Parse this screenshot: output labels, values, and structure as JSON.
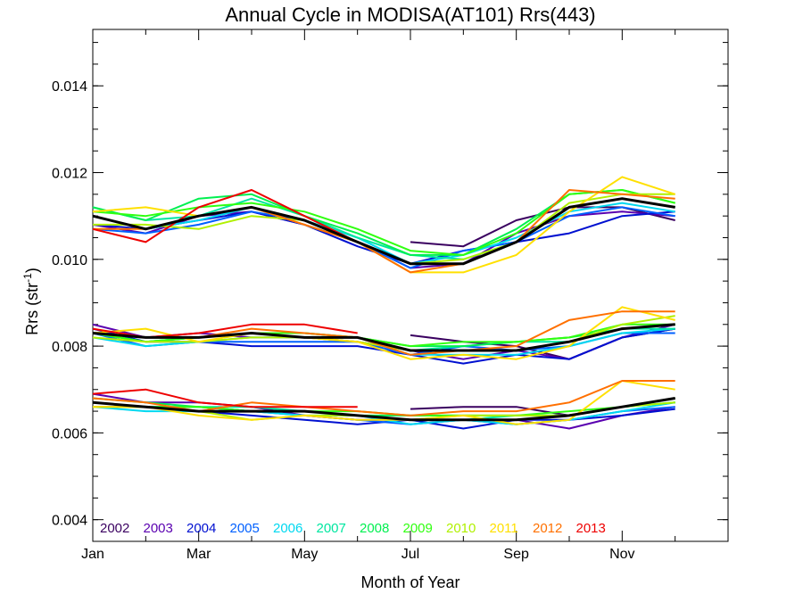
{
  "chart_data": {
    "type": "line",
    "title": "Annual Cycle in MODISA(AT101) Rrs(443)",
    "xlabel": "Month of Year",
    "ylabel": "Rrs (str",
    "ylabel_sup": "-1",
    "ylabel_end": ")",
    "xlim": [
      1,
      13
    ],
    "ylim": [
      0.0035,
      0.0153
    ],
    "x_ticks": [
      {
        "value": 1,
        "label": "Jan"
      },
      {
        "value": 3,
        "label": "Mar"
      },
      {
        "value": 5,
        "label": "May"
      },
      {
        "value": 7,
        "label": "Jul"
      },
      {
        "value": 9,
        "label": "Sep"
      },
      {
        "value": 11,
        "label": "Nov"
      }
    ],
    "y_ticks": [
      {
        "value": 0.004,
        "label": "0.004"
      },
      {
        "value": 0.006,
        "label": "0.006"
      },
      {
        "value": 0.008,
        "label": "0.008"
      },
      {
        "value": 0.01,
        "label": "0.010"
      },
      {
        "value": 0.012,
        "label": "0.012"
      },
      {
        "value": 0.014,
        "label": "0.014"
      }
    ],
    "grid": false,
    "legend_placement": "bottom-left",
    "x": [
      1,
      2,
      3,
      4,
      5,
      6,
      7,
      8,
      9,
      10,
      11,
      12
    ],
    "series": [
      {
        "name": "2002",
        "color": "#3a0060",
        "bands": [
          [
            null,
            null,
            null,
            null,
            null,
            null,
            0.00655,
            0.0066,
            0.0066,
            0.0064,
            0.0066,
            0.0068
          ],
          [
            null,
            null,
            null,
            null,
            null,
            null,
            0.00825,
            0.0081,
            0.008,
            0.0077,
            0.0082,
            0.0084
          ],
          [
            null,
            null,
            null,
            null,
            null,
            null,
            0.0104,
            0.0103,
            0.0109,
            0.0112,
            0.0112,
            0.0109
          ]
        ]
      },
      {
        "name": "2003",
        "color": "#5a00b0",
        "bands": [
          [
            0.0069,
            0.0067,
            0.0067,
            0.0066,
            0.0064,
            0.0063,
            0.0063,
            0.0063,
            0.0063,
            0.0061,
            0.0064,
            0.0066
          ],
          [
            0.0085,
            0.0082,
            0.0083,
            0.0082,
            0.0082,
            0.0081,
            0.0079,
            0.0077,
            0.0079,
            0.0077,
            0.0082,
            0.0085
          ],
          [
            0.0108,
            0.0106,
            0.011,
            0.0111,
            0.0108,
            0.0104,
            0.0098,
            0.0099,
            0.0106,
            0.011,
            0.0111,
            0.011
          ]
        ]
      },
      {
        "name": "2004",
        "color": "#0010d0",
        "bands": [
          [
            0.0066,
            0.0066,
            0.0065,
            0.0064,
            0.0063,
            0.0062,
            0.0063,
            0.0061,
            0.0063,
            0.0063,
            0.0064,
            0.00655
          ],
          [
            0.0084,
            0.0081,
            0.0081,
            0.008,
            0.008,
            0.008,
            0.0078,
            0.0076,
            0.0078,
            0.0077,
            0.0082,
            0.0084
          ],
          [
            0.0108,
            0.0107,
            0.0109,
            0.0111,
            0.0108,
            0.0103,
            0.0099,
            0.0102,
            0.0104,
            0.0106,
            0.011,
            0.0111
          ]
        ]
      },
      {
        "name": "2005",
        "color": "#0060ff",
        "bands": [
          [
            0.0067,
            0.0066,
            0.0066,
            0.0065,
            0.0064,
            0.0063,
            0.0062,
            0.0063,
            0.0062,
            0.0063,
            0.0065,
            0.0066
          ],
          [
            0.0083,
            0.008,
            0.0081,
            0.0081,
            0.0081,
            0.0081,
            0.0078,
            0.008,
            0.0079,
            0.008,
            0.0083,
            0.0083
          ],
          [
            0.0107,
            0.0106,
            0.0108,
            0.0111,
            0.0109,
            0.0104,
            0.0098,
            0.0102,
            0.0104,
            0.011,
            0.0112,
            0.011
          ]
        ]
      },
      {
        "name": "2006",
        "color": "#00d8f0",
        "bands": [
          [
            0.0066,
            0.0065,
            0.0065,
            0.0065,
            0.0064,
            0.0064,
            0.0062,
            0.0063,
            0.0062,
            0.0063,
            0.0065,
            0.0067
          ],
          [
            0.0082,
            0.008,
            0.0081,
            0.0082,
            0.0082,
            0.0082,
            0.0078,
            0.0078,
            0.0078,
            0.008,
            0.0083,
            0.0084
          ],
          [
            0.011,
            0.0107,
            0.0109,
            0.0112,
            0.0109,
            0.0105,
            0.0099,
            0.0101,
            0.0105,
            0.0111,
            0.0113,
            0.0111
          ]
        ]
      },
      {
        "name": "2007",
        "color": "#00e6a0",
        "bands": [
          [
            0.0067,
            0.0066,
            0.0066,
            0.0066,
            0.0065,
            0.0064,
            0.0063,
            0.0063,
            0.0064,
            0.0064,
            0.0066,
            0.0067
          ],
          [
            0.0083,
            0.0081,
            0.0082,
            0.0083,
            0.0082,
            0.0082,
            0.0079,
            0.008,
            0.0081,
            0.0081,
            0.0084,
            0.0084
          ],
          [
            0.0112,
            0.0109,
            0.011,
            0.0114,
            0.011,
            0.0105,
            0.0101,
            0.01,
            0.0104,
            0.0112,
            0.0114,
            0.0112
          ]
        ]
      },
      {
        "name": "2008",
        "color": "#00f050",
        "bands": [
          [
            0.0068,
            0.0067,
            0.0066,
            0.0065,
            0.0065,
            0.0064,
            0.0064,
            0.0064,
            0.0064,
            0.0064,
            0.0066,
            0.0067
          ],
          [
            0.0083,
            0.0081,
            0.0082,
            0.0083,
            0.0083,
            0.0082,
            0.008,
            0.008,
            0.0081,
            0.0082,
            0.0084,
            0.0085
          ],
          [
            0.0112,
            0.0109,
            0.0114,
            0.0115,
            0.011,
            0.0106,
            0.0101,
            0.0101,
            0.0107,
            0.0115,
            0.0116,
            0.0113
          ]
        ]
      },
      {
        "name": "2009",
        "color": "#30ff10",
        "bands": [
          [
            0.0067,
            0.0066,
            0.0066,
            0.0065,
            0.0065,
            0.0065,
            0.0064,
            0.0064,
            0.0064,
            0.0065,
            0.0066,
            0.0068
          ],
          [
            0.0083,
            0.0081,
            0.0082,
            0.0083,
            0.0083,
            0.0082,
            0.008,
            0.0081,
            0.0081,
            0.0082,
            0.0085,
            0.0085
          ],
          [
            0.0111,
            0.011,
            0.0112,
            0.0113,
            0.0111,
            0.0107,
            0.0102,
            0.0101,
            0.0106,
            0.0115,
            0.0116,
            0.0113
          ]
        ]
      },
      {
        "name": "2010",
        "color": "#b0f000",
        "bands": [
          [
            0.0066,
            0.0066,
            0.0065,
            0.0063,
            0.0064,
            0.0064,
            0.0063,
            0.0064,
            0.0064,
            0.0064,
            0.0066,
            0.0067
          ],
          [
            0.0082,
            0.0081,
            0.0081,
            0.0082,
            0.0082,
            0.0081,
            0.0079,
            0.0079,
            0.0079,
            0.0081,
            0.0085,
            0.0087
          ],
          [
            0.0108,
            0.0108,
            0.0107,
            0.011,
            0.0109,
            0.0104,
            0.0099,
            0.01,
            0.0104,
            0.0113,
            0.0115,
            0.0115
          ]
        ]
      },
      {
        "name": "2011",
        "color": "#ffe000",
        "bands": [
          [
            0.0066,
            0.0066,
            0.0064,
            0.0063,
            0.0064,
            0.0063,
            0.0063,
            0.0064,
            0.0062,
            0.0063,
            0.0072,
            0.007
          ],
          [
            0.0083,
            0.0084,
            0.0081,
            0.0083,
            0.0082,
            0.0081,
            0.0077,
            0.0078,
            0.0077,
            0.008,
            0.0089,
            0.0086
          ],
          [
            0.0111,
            0.0112,
            0.011,
            0.0112,
            0.0108,
            0.0104,
            0.0097,
            0.0097,
            0.0101,
            0.0111,
            0.0119,
            0.0115
          ]
        ]
      },
      {
        "name": "2012",
        "color": "#ff7000",
        "bands": [
          [
            0.0068,
            0.0067,
            0.0065,
            0.0067,
            0.0066,
            0.0065,
            0.0064,
            0.0065,
            0.0065,
            0.0067,
            0.0072,
            0.0072
          ],
          [
            0.0083,
            0.0082,
            0.0082,
            0.0084,
            0.0083,
            0.0082,
            0.0078,
            0.0079,
            0.008,
            0.0086,
            0.0088,
            0.0088
          ],
          [
            0.0107,
            0.0107,
            0.011,
            0.0112,
            0.0108,
            0.0104,
            0.0097,
            0.0099,
            0.0104,
            0.0116,
            0.0115,
            0.0114
          ]
        ]
      },
      {
        "name": "2013",
        "color": "#ee0000",
        "bands": [
          [
            0.0069,
            0.007,
            0.0067,
            0.0066,
            0.0066,
            0.0066,
            null,
            null,
            null,
            null,
            null,
            null
          ],
          [
            0.0084,
            0.0082,
            0.0083,
            0.0085,
            0.0085,
            0.0083,
            null,
            null,
            null,
            null,
            null,
            null
          ],
          [
            0.0107,
            0.0104,
            0.0112,
            0.0116,
            0.011,
            0.0104,
            null,
            null,
            null,
            null,
            null,
            null
          ]
        ]
      },
      {
        "name": "",
        "color": "#000000",
        "bands": [
          [
            0.0067,
            0.0066,
            0.0065,
            0.0065,
            0.0065,
            0.0064,
            0.0063,
            0.0063,
            0.0063,
            0.0064,
            0.0066,
            0.0068
          ],
          [
            0.0083,
            0.0082,
            0.0082,
            0.0083,
            0.0082,
            0.0082,
            0.0079,
            0.0079,
            0.0079,
            0.0081,
            0.0084,
            0.0085
          ],
          [
            0.011,
            0.0107,
            0.011,
            0.0112,
            0.0109,
            0.0104,
            0.0099,
            0.0099,
            0.0104,
            0.0112,
            0.0114,
            0.0112
          ]
        ]
      }
    ]
  }
}
